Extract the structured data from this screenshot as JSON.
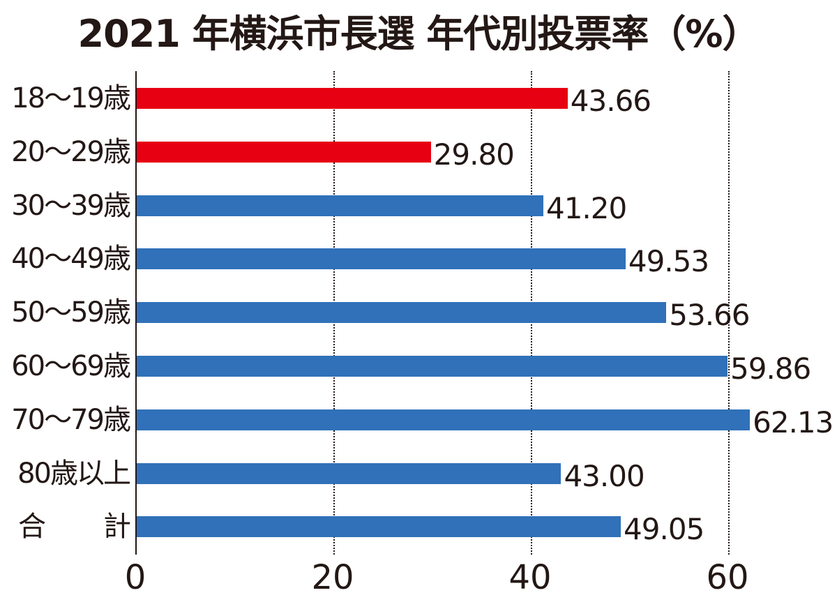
{
  "chart_data": {
    "type": "bar",
    "orientation": "horizontal",
    "title": "2021 年横浜市長選 年代別投票率（%）",
    "xlabel": "",
    "ylabel": "",
    "xlim": [
      0,
      70
    ],
    "x_ticks": [
      "0",
      "20",
      "40",
      "60"
    ],
    "grid": "vertical dotted at 20, 40, 60",
    "categories": [
      "18～19歳",
      "20～29歳",
      "30～39歳",
      "40～49歳",
      "50～59歳",
      "60～69歳",
      "70～79歳",
      "80歳以上",
      "合　計"
    ],
    "values": [
      43.66,
      29.8,
      41.2,
      49.53,
      53.66,
      59.86,
      62.13,
      43.0,
      49.05
    ],
    "value_labels": [
      "43.66",
      "29.80",
      "41.20",
      "49.53",
      "53.66",
      "59.86",
      "62.13",
      "43.00",
      "49.05"
    ],
    "colors": [
      "#e60012",
      "#e60012",
      "#3071b9",
      "#3071b9",
      "#3071b9",
      "#3071b9",
      "#3071b9",
      "#3071b9",
      "#3071b9"
    ],
    "legend": null
  },
  "title": "2021 年横浜市長選 年代別投票率（%）",
  "total_label_parts": [
    "合",
    "計"
  ],
  "colors": {
    "youth": "#e60012",
    "other": "#3071b9",
    "text": "#231815"
  }
}
